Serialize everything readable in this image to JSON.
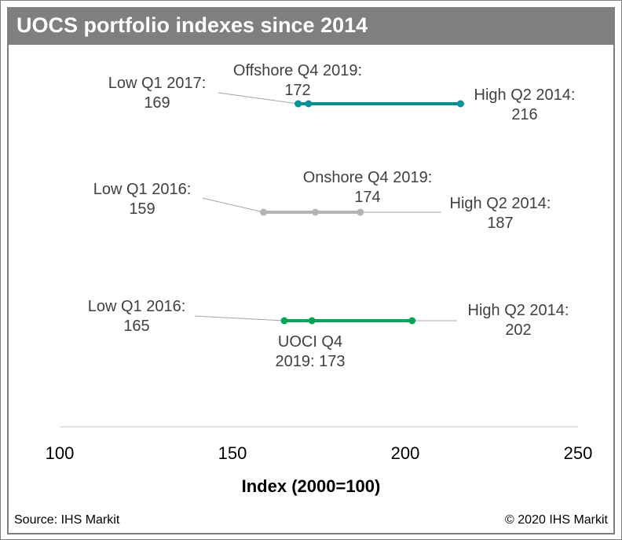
{
  "title": "UOCS portfolio indexes since 2014",
  "source": "Source: IHS Markit",
  "copyright": "© 2020 IHS Markit",
  "chart_data": {
    "type": "range",
    "title": "UOCS portfolio indexes since 2014",
    "xlabel": "Index (2000=100)",
    "xlim": [
      100,
      250
    ],
    "xticks": [
      "100",
      "150",
      "200",
      "250"
    ],
    "series": [
      {
        "low": 169,
        "high": 216,
        "current": 172,
        "color": "#00929a",
        "low_label": [
          "Low Q1 2017:",
          "169"
        ],
        "high_label": [
          "High Q2 2014:",
          "216"
        ],
        "current_label": [
          "Offshore Q4 2019:",
          "172"
        ]
      },
      {
        "low": 159,
        "high": 187,
        "current": 174,
        "color": "#b3b3b7",
        "low_label": [
          "Low Q1 2016:",
          "159"
        ],
        "high_label": [
          "High Q2 2014:",
          "187"
        ],
        "current_label": [
          "Onshore Q4 2019:",
          "174"
        ]
      },
      {
        "low": 165,
        "high": 202,
        "current": 173,
        "color": "#00a651",
        "low_label": [
          "Low Q1 2016:",
          "165"
        ],
        "high_label": [
          "High Q2 2014:",
          "202"
        ],
        "current_label": [
          "UOCI Q4",
          "2019: 173"
        ]
      }
    ]
  }
}
